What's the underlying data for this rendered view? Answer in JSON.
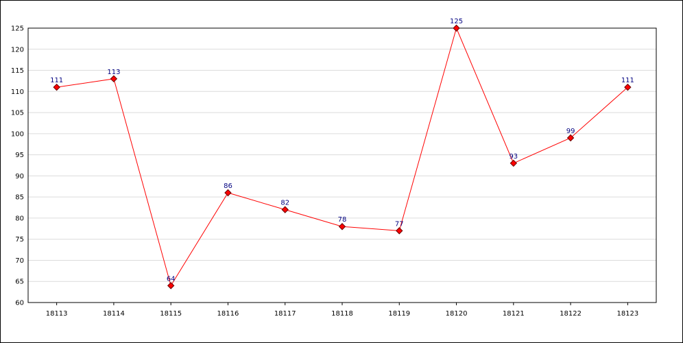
{
  "chart_data": {
    "type": "line",
    "categories": [
      "18113",
      "18114",
      "18115",
      "18116",
      "18117",
      "18118",
      "18119",
      "18120",
      "18121",
      "18122",
      "18123"
    ],
    "series": [
      {
        "color": "#ff0000",
        "values": [
          111,
          113,
          64,
          86,
          82,
          78,
          77,
          125,
          93,
          99,
          111
        ]
      }
    ],
    "ylim": [
      60,
      125
    ],
    "yticks": [
      60,
      65,
      70,
      75,
      80,
      85,
      90,
      95,
      100,
      105,
      110,
      115,
      120,
      125
    ],
    "grid": true,
    "data_labels": true
  }
}
